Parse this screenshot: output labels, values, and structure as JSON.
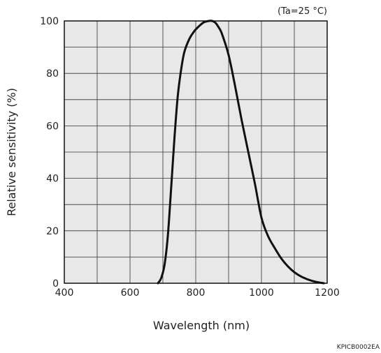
{
  "chart_data": {
    "type": "line",
    "title": "",
    "xlabel": "Wavelength (nm)",
    "ylabel": "Relative sensitivity (%)",
    "condition_note": "(Ta=25 °C)",
    "figure_code": "KPICB0002EA",
    "xlim": [
      400,
      1200
    ],
    "ylim": [
      0,
      100
    ],
    "x_ticks": [
      400,
      600,
      800,
      1000,
      1200
    ],
    "y_ticks": [
      0,
      20,
      40,
      60,
      80,
      100
    ],
    "x_ticks_labels": [
      "400",
      "600",
      "800",
      "1000",
      "1200"
    ],
    "y_ticks_labels": [
      "0",
      "20",
      "40",
      "60",
      "80",
      "100"
    ],
    "grid": true,
    "grid_x_step": 100,
    "grid_y_step": 10,
    "background_color": "#e8e8e8",
    "line_color": "#111111",
    "series": [
      {
        "x": [
          685,
          695,
          705,
          715,
          725,
          735,
          745,
          755,
          765,
          780,
          795,
          810,
          825,
          840,
          850,
          860,
          870,
          880,
          900,
          920,
          940,
          960,
          980,
          1000,
          1020,
          1040,
          1060,
          1080,
          1100,
          1120,
          1140,
          1160,
          1180,
          1190
        ],
        "y": [
          0,
          2,
          7,
          18,
          36,
          55,
          71,
          81,
          88,
          93,
          96,
          98,
          99.5,
          100,
          100,
          99.3,
          97.5,
          95,
          87,
          75,
          62,
          50,
          38,
          25,
          18,
          13.5,
          9.5,
          6.5,
          4.2,
          2.6,
          1.5,
          0.7,
          0.2,
          0
        ]
      }
    ]
  }
}
